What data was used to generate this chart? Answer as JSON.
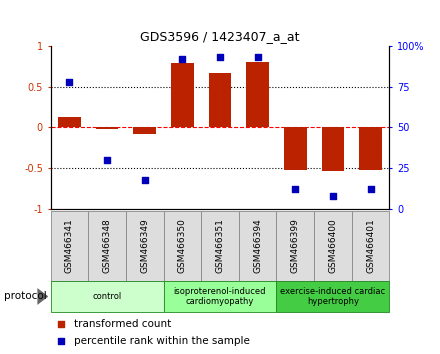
{
  "title": "GDS3596 / 1423407_a_at",
  "samples": [
    "GSM466341",
    "GSM466348",
    "GSM466349",
    "GSM466350",
    "GSM466351",
    "GSM466394",
    "GSM466399",
    "GSM466400",
    "GSM466401"
  ],
  "transformed_count": [
    0.13,
    -0.02,
    -0.08,
    0.79,
    0.67,
    0.8,
    -0.52,
    -0.54,
    -0.52
  ],
  "percentile_rank": [
    78,
    30,
    18,
    92,
    93,
    93,
    12,
    8,
    12
  ],
  "groups": [
    {
      "label": "control",
      "start": 0,
      "end": 3,
      "color": "#ccffcc"
    },
    {
      "label": "isoproterenol-induced\ncardiomyopathy",
      "start": 3,
      "end": 6,
      "color": "#99ff99"
    },
    {
      "label": "exercise-induced cardiac\nhypertrophy",
      "start": 6,
      "end": 9,
      "color": "#44cc44"
    }
  ],
  "bar_color": "#bb2200",
  "dot_color": "#0000bb",
  "ylim_left": [
    -1.0,
    1.0
  ],
  "ylim_right": [
    0,
    100
  ],
  "yticks_left": [
    -1.0,
    -0.5,
    0.0,
    0.5,
    1.0
  ],
  "ytick_labels_left": [
    "-1",
    "-0.5",
    "0",
    "0.5",
    "1"
  ],
  "yticks_right": [
    0,
    25,
    50,
    75,
    100
  ],
  "ytick_labels_right": [
    "0",
    "25",
    "50",
    "75",
    "100%"
  ],
  "legend_items": [
    {
      "label": "transformed count",
      "color": "#bb2200"
    },
    {
      "label": "percentile rank within the sample",
      "color": "#0000bb"
    }
  ],
  "protocol_label": "protocol"
}
